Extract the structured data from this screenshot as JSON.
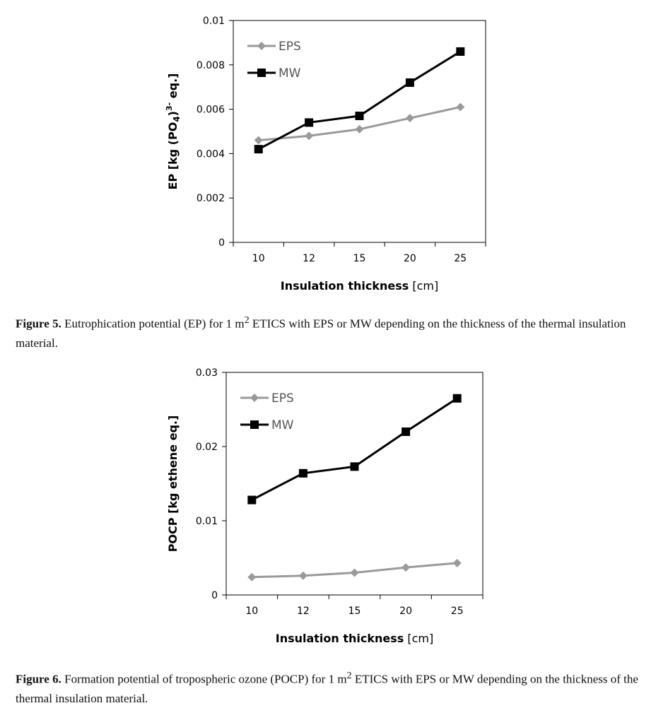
{
  "chart_data": [
    {
      "type": "line",
      "title": "",
      "categories": [
        "10",
        "12",
        "15",
        "20",
        "25"
      ],
      "series": [
        {
          "name": "EPS",
          "values": [
            0.0046,
            0.0048,
            0.0051,
            0.0056,
            0.0061
          ],
          "color": "#9a9a9a",
          "marker": "diamond"
        },
        {
          "name": "MW",
          "values": [
            0.0042,
            0.0054,
            0.0057,
            0.0072,
            0.0086
          ],
          "color": "#000000",
          "marker": "square"
        }
      ],
      "ylim": [
        0,
        0.01
      ],
      "yticks": [
        "0",
        "0.002",
        "0.004",
        "0.006",
        "0.008",
        "0.01"
      ],
      "ylabel": {
        "main": "EP [kg (PO",
        "sub": "4",
        "mid": ")",
        "sup": "3-",
        "end": " eq.]"
      },
      "xlabel": {
        "bold": "Insulation thickness",
        "unit": " [cm]"
      },
      "legend_position": "top-left"
    },
    {
      "type": "line",
      "title": "",
      "categories": [
        "10",
        "12",
        "15",
        "20",
        "25"
      ],
      "series": [
        {
          "name": "EPS",
          "values": [
            0.0024,
            0.0026,
            0.003,
            0.0037,
            0.0043
          ],
          "color": "#9a9a9a",
          "marker": "diamond"
        },
        {
          "name": "MW",
          "values": [
            0.0128,
            0.0164,
            0.0173,
            0.022,
            0.0265
          ],
          "color": "#000000",
          "marker": "square"
        }
      ],
      "ylim": [
        0,
        0.03
      ],
      "yticks": [
        "0",
        "0.01",
        "0.02",
        "0.03"
      ],
      "ylabel": {
        "main": "POCP [kg ethene eq.]"
      },
      "xlabel": {
        "bold": "Insulation thickness",
        "unit": " [cm]"
      },
      "legend_position": "top-left"
    }
  ],
  "captions": [
    {
      "label": "Figure 5.",
      "pre": " Eutrophication potential (EP) for 1 m",
      "sup": "2",
      "post": " ETICS with EPS or MW depending on the thickness of the thermal insulation material."
    },
    {
      "label": "Figure 6.",
      "pre": " Formation potential of tropospheric ozone (POCP) for 1 m",
      "sup": "2",
      "post": " ETICS with EPS or MW depending on the thickness of the thermal insulation material."
    }
  ]
}
